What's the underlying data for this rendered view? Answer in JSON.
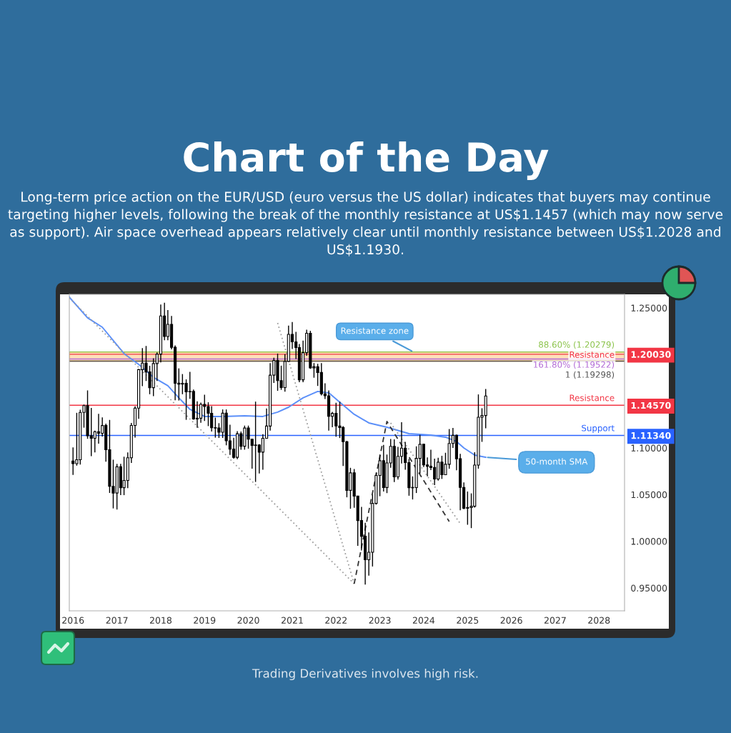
{
  "chart_data": {
    "type": "candlestick",
    "title": "Chart of the Day",
    "subtitle": "Long-term price action on the EUR/USD (euro versus the US dollar) indicates that buyers may continue targeting higher levels, following the break of the monthly resistance at US$1.1457 (which may now serve as support). Air space overhead appears relatively clear until monthly resistance between US$1.2028 and US$1.1930.",
    "annotations": [
      {
        "text": "50-month SMA",
        "x": "2025-06",
        "y": 1.09
      },
      "Trading Derivatives involves high risk."
    ],
    "x": [
      "2016-01",
      "2016-02",
      "2016-03",
      "2016-04",
      "2016-05",
      "2016-06",
      "2016-07",
      "2016-08",
      "2016-09",
      "2016-10",
      "2016-11",
      "2016-12",
      "2017-01",
      "2017-02",
      "2017-03",
      "2017-04",
      "2017-05",
      "2017-06",
      "2017-07",
      "2017-08",
      "2017-09",
      "2017-10",
      "2017-11",
      "2017-12",
      "2018-01",
      "2018-02",
      "2018-03",
      "2018-04",
      "2018-05",
      "2018-06",
      "2018-07",
      "2018-08",
      "2018-09",
      "2018-10",
      "2018-11",
      "2018-12",
      "2019-01",
      "2019-02",
      "2019-03",
      "2019-04",
      "2019-05",
      "2019-06",
      "2019-07",
      "2019-08",
      "2019-09",
      "2019-10",
      "2019-11",
      "2019-12",
      "2020-01",
      "2020-02",
      "2020-03",
      "2020-04",
      "2020-05",
      "2020-06",
      "2020-07",
      "2020-08",
      "2020-09",
      "2020-10",
      "2020-11",
      "2020-12",
      "2021-01",
      "2021-02",
      "2021-03",
      "2021-04",
      "2021-05",
      "2021-06",
      "2021-07",
      "2021-08",
      "2021-09",
      "2021-10",
      "2021-11",
      "2021-12",
      "2022-01",
      "2022-02",
      "2022-03",
      "2022-04",
      "2022-05",
      "2022-06",
      "2022-07",
      "2022-08",
      "2022-09",
      "2022-10",
      "2022-11",
      "2022-12",
      "2023-01",
      "2023-02",
      "2023-03",
      "2023-04",
      "2023-05",
      "2023-06",
      "2023-07",
      "2023-08",
      "2023-09",
      "2023-10",
      "2023-11",
      "2023-12",
      "2024-01",
      "2024-02",
      "2024-03",
      "2024-04",
      "2024-05",
      "2024-06",
      "2024-07",
      "2024-08",
      "2024-09",
      "2024-10",
      "2024-11",
      "2024-12",
      "2025-01",
      "2025-02",
      "2025-03",
      "2025-04",
      "2025-05",
      "2025-06"
    ],
    "ohlc": [
      [
        1.086,
        1.1006,
        1.0711,
        1.0831
      ],
      [
        1.0831,
        1.1376,
        1.081,
        1.0873
      ],
      [
        1.0873,
        1.141,
        1.0822,
        1.138
      ],
      [
        1.138,
        1.1464,
        1.1217,
        1.1453
      ],
      [
        1.1453,
        1.1616,
        1.1098,
        1.1131
      ],
      [
        1.1131,
        1.1428,
        1.0912,
        1.1103
      ],
      [
        1.1103,
        1.1185,
        1.0952,
        1.1174
      ],
      [
        1.1174,
        1.1366,
        1.1045,
        1.1157
      ],
      [
        1.1157,
        1.1327,
        1.1122,
        1.124
      ],
      [
        1.124,
        1.126,
        1.0852,
        1.0981
      ],
      [
        1.0981,
        1.13,
        1.0518,
        1.0588
      ],
      [
        1.0588,
        1.0874,
        1.0352,
        1.0517
      ],
      [
        1.0517,
        1.0829,
        1.034,
        1.0798
      ],
      [
        1.0798,
        1.0829,
        1.0494,
        1.0574
      ],
      [
        1.0574,
        1.0906,
        1.0494,
        1.0652
      ],
      [
        1.0652,
        1.0951,
        1.057,
        1.0895
      ],
      [
        1.0895,
        1.1268,
        1.0839,
        1.1241
      ],
      [
        1.1241,
        1.1446,
        1.111,
        1.1426
      ],
      [
        1.1426,
        1.1845,
        1.1312,
        1.1839
      ],
      [
        1.1839,
        1.207,
        1.1662,
        1.1908
      ],
      [
        1.1908,
        1.2092,
        1.1717,
        1.1814
      ],
      [
        1.1814,
        1.188,
        1.1575,
        1.1645
      ],
      [
        1.1645,
        1.1961,
        1.1554,
        1.1904
      ],
      [
        1.1904,
        1.2023,
        1.1718,
        1.2005
      ],
      [
        1.2005,
        1.2536,
        1.1916,
        1.2414
      ],
      [
        1.2414,
        1.2556,
        1.2154,
        1.2194
      ],
      [
        1.2194,
        1.2476,
        1.2154,
        1.2324
      ],
      [
        1.2324,
        1.2414,
        1.2055,
        1.2078
      ],
      [
        1.2078,
        1.2098,
        1.151,
        1.1693
      ],
      [
        1.1693,
        1.1852,
        1.1508,
        1.1684
      ],
      [
        1.1684,
        1.1791,
        1.1575,
        1.1692
      ],
      [
        1.1692,
        1.1734,
        1.1301,
        1.1601
      ],
      [
        1.1601,
        1.1815,
        1.1526,
        1.1605
      ],
      [
        1.1605,
        1.1625,
        1.1302,
        1.131
      ],
      [
        1.131,
        1.15,
        1.1216,
        1.1318
      ],
      [
        1.1318,
        1.1486,
        1.1269,
        1.1467
      ],
      [
        1.1467,
        1.157,
        1.1289,
        1.1444
      ],
      [
        1.1444,
        1.1489,
        1.1234,
        1.1371
      ],
      [
        1.1371,
        1.1448,
        1.1176,
        1.1217
      ],
      [
        1.1217,
        1.1324,
        1.111,
        1.1213
      ],
      [
        1.1213,
        1.1265,
        1.1107,
        1.1168
      ],
      [
        1.1168,
        1.1412,
        1.1107,
        1.1372
      ],
      [
        1.1372,
        1.1412,
        1.1028,
        1.1076
      ],
      [
        1.1076,
        1.1249,
        1.0926,
        1.0987
      ],
      [
        1.0987,
        1.1109,
        1.0885,
        1.0899
      ],
      [
        1.0899,
        1.1179,
        1.0879,
        1.1152
      ],
      [
        1.1152,
        1.1175,
        1.0981,
        1.1018
      ],
      [
        1.1018,
        1.1239,
        1.0981,
        1.1213
      ],
      [
        1.1213,
        1.1239,
        1.0992,
        1.1093
      ],
      [
        1.1093,
        1.11,
        1.0778,
        1.1026
      ],
      [
        1.1026,
        1.1496,
        1.0636,
        1.1031
      ],
      [
        1.1031,
        1.1039,
        1.0727,
        1.0955
      ],
      [
        1.0955,
        1.1147,
        1.0767,
        1.1103
      ],
      [
        1.1103,
        1.1422,
        1.11,
        1.1234
      ],
      [
        1.1234,
        1.1909,
        1.1186,
        1.1779
      ],
      [
        1.1779,
        1.1966,
        1.1696,
        1.1936
      ],
      [
        1.1936,
        1.2011,
        1.1612,
        1.1721
      ],
      [
        1.1721,
        1.1881,
        1.1622,
        1.1646
      ],
      [
        1.1646,
        1.2004,
        1.1603,
        1.1927
      ],
      [
        1.1927,
        1.231,
        1.1923,
        1.2216
      ],
      [
        1.2216,
        1.2349,
        1.206,
        1.2136
      ],
      [
        1.2136,
        1.2243,
        1.1952,
        1.2075
      ],
      [
        1.2075,
        1.2113,
        1.1704,
        1.173
      ],
      [
        1.173,
        1.215,
        1.1704,
        1.202
      ],
      [
        1.202,
        1.2266,
        1.1986,
        1.2228
      ],
      [
        1.2228,
        1.2254,
        1.1847,
        1.1858
      ],
      [
        1.1858,
        1.1909,
        1.1752,
        1.1869
      ],
      [
        1.1869,
        1.1901,
        1.1664,
        1.1808
      ],
      [
        1.1808,
        1.1909,
        1.1563,
        1.1579
      ],
      [
        1.1579,
        1.1692,
        1.1524,
        1.1558
      ],
      [
        1.1558,
        1.1616,
        1.1186,
        1.1338
      ],
      [
        1.1338,
        1.1386,
        1.1222,
        1.137
      ],
      [
        1.137,
        1.1483,
        1.1121,
        1.1235
      ],
      [
        1.1235,
        1.1495,
        1.1106,
        1.1219
      ],
      [
        1.1219,
        1.1233,
        1.0806,
        1.1067
      ],
      [
        1.1067,
        1.1076,
        1.0471,
        1.0545
      ],
      [
        1.0545,
        1.0787,
        1.0349,
        1.0733
      ],
      [
        1.0733,
        1.0774,
        1.0359,
        1.0484
      ],
      [
        1.0484,
        1.0487,
        0.9952,
        1.0222
      ],
      [
        1.0222,
        1.0368,
        0.9901,
        1.0054
      ],
      [
        1.0054,
        1.0198,
        0.9536,
        0.9802
      ],
      [
        0.9802,
        1.0094,
        0.9632,
        0.9883
      ],
      [
        0.9883,
        1.0497,
        0.973,
        1.0406
      ],
      [
        1.0406,
        1.0736,
        1.0393,
        1.0705
      ],
      [
        1.0705,
        1.0929,
        1.0483,
        1.0863
      ],
      [
        1.0863,
        1.1033,
        1.0533,
        1.0576
      ],
      [
        1.0576,
        1.0929,
        1.0516,
        1.0839
      ],
      [
        1.0839,
        1.1095,
        1.0788,
        1.1017
      ],
      [
        1.1017,
        1.1092,
        1.0635,
        1.069
      ],
      [
        1.069,
        1.1012,
        1.0662,
        1.091
      ],
      [
        1.091,
        1.1276,
        1.0833,
        1.0998
      ],
      [
        1.0998,
        1.1065,
        1.0766,
        1.0843
      ],
      [
        1.0843,
        1.0882,
        1.0488,
        1.0573
      ],
      [
        1.0573,
        1.0695,
        1.0448,
        1.0575
      ],
      [
        1.0575,
        1.1017,
        1.0517,
        1.0888
      ],
      [
        1.0888,
        1.114,
        1.0724,
        1.1039
      ],
      [
        1.1039,
        1.1046,
        1.0795,
        1.0818
      ],
      [
        1.0818,
        1.0898,
        1.0695,
        1.0804
      ],
      [
        1.0804,
        1.0981,
        1.0762,
        1.079
      ],
      [
        1.079,
        1.0885,
        1.0601,
        1.0667
      ],
      [
        1.0667,
        1.0895,
        1.065,
        1.0848
      ],
      [
        1.0848,
        1.0916,
        1.0668,
        1.0713
      ],
      [
        1.0713,
        1.0948,
        1.0709,
        1.0825
      ],
      [
        1.0825,
        1.1202,
        1.0777,
        1.1048
      ],
      [
        1.1048,
        1.1214,
        1.0999,
        1.1135
      ],
      [
        1.1135,
        1.1144,
        1.0761,
        1.0884
      ],
      [
        1.0884,
        1.0937,
        1.0332,
        1.0577
      ],
      [
        1.0577,
        1.063,
        1.0343,
        1.0354
      ],
      [
        1.0354,
        1.0533,
        1.0177,
        1.0362
      ],
      [
        1.0362,
        1.0513,
        1.0141,
        1.0375
      ],
      [
        1.0375,
        1.0954,
        1.036,
        1.0816
      ],
      [
        1.0816,
        1.1573,
        1.0778,
        1.1329
      ],
      [
        1.1329,
        1.1425,
        1.1065,
        1.1347
      ],
      [
        1.1347,
        1.1631,
        1.121,
        1.1556
      ]
    ],
    "series": [
      {
        "type": "line",
        "color": "#5b8ff9",
        "x": [
          "2015-12",
          "2016-05",
          "2016-09",
          "2017-03",
          "2017-07",
          "2017-11",
          "2018-03",
          "2018-06",
          "2018-09",
          "2019-01",
          "2019-06",
          "2019-12",
          "2020-05",
          "2020-07",
          "2020-09",
          "2020-12",
          "2021-04",
          "2021-08",
          "2021-11",
          "2022-02",
          "2022-06",
          "2022-10",
          "2023-03",
          "2023-09",
          "2024-03",
          "2024-07",
          "2024-10",
          "2024-12",
          "2025-03",
          "2025-06"
        ],
        "values": [
          1.2615,
          1.2393,
          1.2293,
          1.201,
          1.1895,
          1.1757,
          1.1666,
          1.1536,
          1.1413,
          1.1337,
          1.1337,
          1.1344,
          1.1337,
          1.136,
          1.1383,
          1.1436,
          1.1536,
          1.1605,
          1.159,
          1.149,
          1.136,
          1.1268,
          1.1222,
          1.1153,
          1.1138,
          1.1115,
          1.1069,
          1.1,
          1.0923,
          1.09
        ]
      },
      {
        "type": "line",
        "color": "#9e9e9e",
        "line_style": "dotted",
        "x": [
          "2015-12",
          "2022-06"
        ],
        "values": [
          1.2607,
          0.9545
        ]
      },
      {
        "type": "line",
        "color": "#9e9e9e",
        "line_style": "dotted",
        "x": [
          "2020-09",
          "2022-06"
        ],
        "values": [
          1.2339,
          0.9545
        ]
      },
      {
        "type": "line",
        "color": "#333333",
        "line_style": "dashed",
        "x": [
          "2022-06",
          "2023-03",
          "2024-08"
        ],
        "values": [
          0.9545,
          1.1283,
          1.0212
        ]
      },
      {
        "type": "line",
        "color": "#9e9e9e",
        "line_style": "dotted",
        "x": [
          "2023-04",
          "2024-11"
        ],
        "values": [
          1.1268,
          1.0189
        ]
      }
    ],
    "ref_lines": [
      {
        "axis": "y",
        "value": 1.20279,
        "label": "88.60% (1.20279)",
        "color": "#8bc34a"
      },
      {
        "axis": "y",
        "value": 1.2003,
        "label": "Resistance",
        "color": "#f23645"
      },
      {
        "axis": "y",
        "value": 1.19522,
        "label": "161.80% (1.19522)",
        "color": "#b36bd6"
      },
      {
        "axis": "y",
        "value": 1.19298,
        "label": "1 (1.19298)",
        "color": "#555555"
      },
      {
        "axis": "y",
        "value": 1.1457,
        "label": "Resistance",
        "color": "#f23645"
      },
      {
        "axis": "y",
        "value": 1.1134,
        "label": "Support",
        "color": "#2962ff"
      }
    ],
    "bands": [
      {
        "axis": "y",
        "from": 1.193,
        "to": 1.2028,
        "label": "Resistance zone",
        "color": "#ffd8a8"
      }
    ],
    "xlim": [
      "2015-12",
      "2028-08"
    ],
    "xticks": [
      "2016",
      "2017",
      "2018",
      "2019",
      "2020",
      "2021",
      "2022",
      "2023",
      "2024",
      "2025",
      "2026",
      "2027",
      "2028"
    ],
    "ylim": [
      0.9255,
      1.2645
    ],
    "yticks": [
      {
        "value": 0.95,
        "label": "0.95000"
      },
      {
        "value": 1.0,
        "label": "1.00000"
      },
      {
        "value": 1.05,
        "label": "1.05000"
      },
      {
        "value": 1.1,
        "label": "1.10000"
      },
      {
        "value": 1.1134,
        "label": "1.11340"
      },
      {
        "value": 1.1457,
        "label": "1.14570"
      },
      {
        "value": 1.2003,
        "label": "1.20030"
      },
      {
        "value": 1.25,
        "label": "1.25000"
      }
    ]
  }
}
